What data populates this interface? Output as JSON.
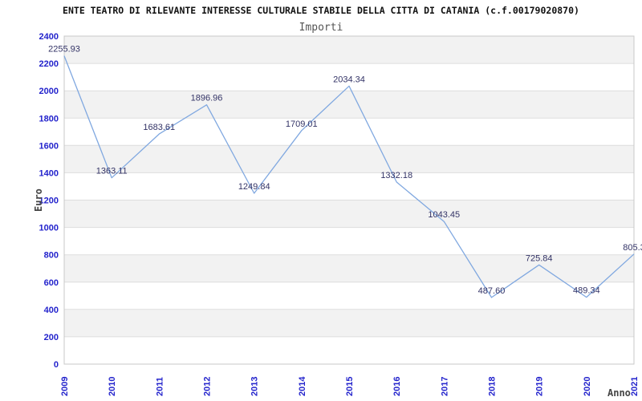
{
  "header": {
    "title": "ENTE TEATRO DI RILEVANTE INTERESSE CULTURALE STABILE DELLA CITTA DI CATANIA (c.f.00179020870)",
    "subtitle": "Importi"
  },
  "chart_data": {
    "type": "line",
    "title": "ENTE TEATRO DI RILEVANTE INTERESSE CULTURALE STABILE DELLA CITTA DI CATANIA (c.f.00179020870)",
    "subtitle": "Importi",
    "xlabel": "Anno",
    "ylabel": "Euro",
    "categories": [
      "2009",
      "2010",
      "2011",
      "2012",
      "2013",
      "2014",
      "2015",
      "2016",
      "2017",
      "2018",
      "2019",
      "2020",
      "2021"
    ],
    "series": [
      {
        "name": "Importi",
        "values": [
          2255.93,
          1363.11,
          1683.61,
          1896.96,
          1249.84,
          1709.01,
          2034.34,
          1332.18,
          1043.45,
          487.6,
          725.84,
          489.34,
          805.3
        ]
      }
    ],
    "point_labels": [
      "2255.93",
      "1363.11",
      "1683.61",
      "1896.96",
      "1249.84",
      "1709.01",
      "2034.34",
      "1332.18",
      "1043.45",
      "487.60",
      "725.84",
      "489.34",
      "805.3"
    ],
    "ylim": [
      0,
      2400
    ],
    "ytick_step": 200,
    "grid": true,
    "legend_position": "none",
    "band_fill_alternating": true,
    "colors": {
      "line": "#80a8e0",
      "tick_label": "#2323cc",
      "data_label": "#333366",
      "band": "#f2f2f2",
      "gridline": "#dddddd",
      "border": "#c8c8c8",
      "axis_title": "#444444",
      "title": "#111111",
      "subtitle": "#555555",
      "background": "#ffffff"
    }
  }
}
